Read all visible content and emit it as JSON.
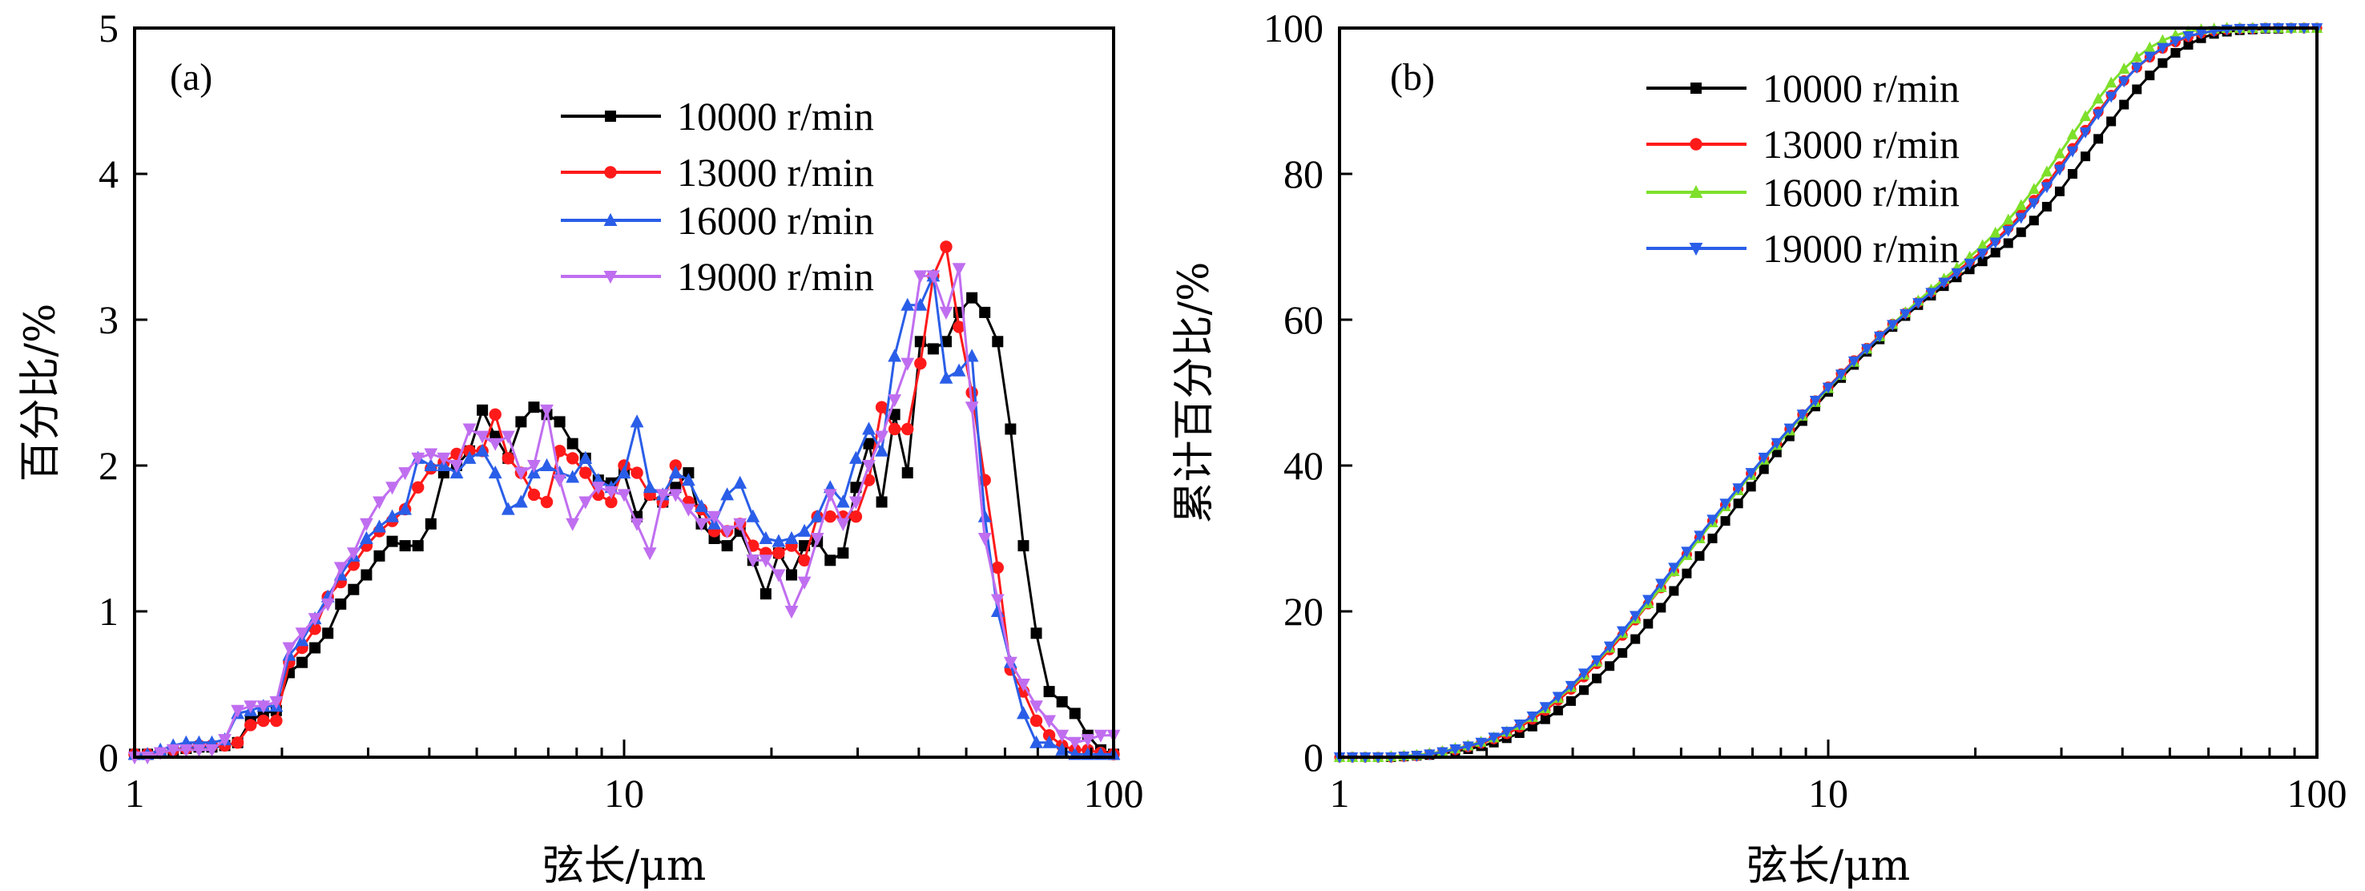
{
  "chart_data": [
    {
      "type": "line",
      "panel_label": "(a)",
      "title": "",
      "xlabel": "弦长/μm",
      "ylabel": "百分比/%",
      "xscale": "log",
      "xlim": [
        1,
        100
      ],
      "ylim": [
        0,
        5
      ],
      "xticks": [
        "1",
        "10",
        "100"
      ],
      "yticks": [
        "0",
        "1",
        "2",
        "3",
        "4",
        "5"
      ],
      "grid": false,
      "legend_position": "top-right",
      "points_per_decade": 38,
      "series": [
        {
          "name": "10000 r/min",
          "color": "#000000",
          "marker": "square",
          "values": [
            0.02,
            0.02,
            0.03,
            0.05,
            0.06,
            0.07,
            0.07,
            0.08,
            0.1,
            0.25,
            0.3,
            0.32,
            0.58,
            0.65,
            0.75,
            0.85,
            1.05,
            1.15,
            1.25,
            1.38,
            1.48,
            1.45,
            1.45,
            1.6,
            1.95,
            2.0,
            2.1,
            2.38,
            2.2,
            2.05,
            2.3,
            2.4,
            2.35,
            2.3,
            2.15,
            2.05,
            1.9,
            1.88,
            1.95,
            1.65,
            1.8,
            1.75,
            1.85,
            1.95,
            1.6,
            1.5,
            1.45,
            1.55,
            1.35,
            1.12,
            1.4,
            1.25,
            1.45,
            1.48,
            1.35,
            1.4,
            1.85,
            2.15,
            1.75,
            2.35,
            1.95,
            2.85,
            2.8,
            2.85,
            3.05,
            3.15,
            3.05,
            2.85,
            2.25,
            1.45,
            0.85,
            0.45,
            0.38,
            0.3,
            0.15,
            0.05,
            0.02
          ]
        },
        {
          "name": "13000 r/min",
          "color": "#ff1a1a",
          "marker": "circle",
          "values": [
            0.02,
            0.02,
            0.03,
            0.05,
            0.06,
            0.08,
            0.08,
            0.08,
            0.1,
            0.22,
            0.25,
            0.25,
            0.65,
            0.75,
            0.88,
            1.1,
            1.2,
            1.32,
            1.45,
            1.55,
            1.62,
            1.7,
            1.85,
            1.98,
            2.02,
            2.08,
            2.1,
            2.1,
            2.35,
            2.05,
            1.95,
            1.8,
            1.75,
            2.1,
            2.05,
            1.95,
            1.8,
            1.75,
            2.0,
            1.95,
            1.8,
            1.75,
            2.0,
            1.75,
            1.7,
            1.55,
            1.55,
            1.6,
            1.45,
            1.4,
            1.4,
            1.45,
            1.35,
            1.65,
            1.65,
            1.65,
            1.65,
            1.9,
            2.4,
            2.25,
            2.25,
            2.7,
            3.3,
            3.5,
            2.95,
            2.5,
            1.9,
            1.3,
            0.6,
            0.45,
            0.25,
            0.15,
            0.08,
            0.05,
            0.05,
            0.03,
            0.02
          ]
        },
        {
          "name": "16000 r/min",
          "color": "#2a5ee8",
          "marker": "triangle-up",
          "values": [
            0.02,
            0.02,
            0.05,
            0.08,
            0.1,
            0.1,
            0.1,
            0.12,
            0.3,
            0.32,
            0.35,
            0.35,
            0.7,
            0.8,
            0.95,
            1.1,
            1.25,
            1.38,
            1.5,
            1.58,
            1.65,
            1.7,
            2.05,
            2.0,
            2.0,
            1.95,
            2.05,
            2.1,
            1.95,
            1.7,
            1.75,
            1.95,
            2.0,
            1.95,
            1.92,
            2.05,
            1.9,
            1.85,
            1.95,
            2.3,
            1.85,
            1.8,
            1.95,
            1.9,
            1.72,
            1.6,
            1.8,
            1.88,
            1.65,
            1.5,
            1.48,
            1.5,
            1.55,
            1.65,
            1.85,
            1.75,
            2.05,
            2.25,
            2.1,
            2.75,
            3.1,
            3.1,
            3.3,
            2.6,
            2.65,
            2.75,
            1.65,
            1.0,
            0.65,
            0.3,
            0.1,
            0.1,
            0.05,
            0.02,
            0.02,
            0.02,
            0.02
          ]
        },
        {
          "name": "19000 r/min",
          "color": "#c06ef0",
          "marker": "triangle-down",
          "values": [
            0.0,
            0.0,
            0.03,
            0.05,
            0.05,
            0.05,
            0.05,
            0.12,
            0.32,
            0.35,
            0.35,
            0.38,
            0.75,
            0.85,
            0.95,
            1.05,
            1.3,
            1.4,
            1.6,
            1.75,
            1.85,
            1.95,
            2.05,
            2.08,
            2.05,
            2.0,
            2.25,
            2.2,
            2.15,
            2.2,
            1.95,
            2.0,
            2.38,
            1.9,
            1.6,
            1.75,
            1.85,
            1.82,
            1.8,
            1.6,
            1.4,
            1.8,
            1.8,
            1.7,
            1.6,
            1.65,
            1.55,
            1.6,
            1.35,
            1.35,
            1.25,
            1.0,
            1.2,
            1.5,
            1.8,
            1.6,
            1.75,
            2.0,
            2.2,
            2.45,
            2.7,
            3.3,
            3.3,
            3.05,
            3.35,
            2.4,
            1.5,
            1.08,
            0.65,
            0.5,
            0.35,
            0.25,
            0.15,
            0.1,
            0.12,
            0.15,
            0.15
          ]
        }
      ]
    },
    {
      "type": "line",
      "panel_label": "(b)",
      "title": "",
      "xlabel": "弦长/μm",
      "ylabel": "累计百分比/%",
      "xscale": "log",
      "xlim": [
        1,
        100
      ],
      "ylim": [
        0,
        100
      ],
      "xticks": [
        "1",
        "10",
        "100"
      ],
      "yticks": [
        "0",
        "20",
        "40",
        "60",
        "80",
        "100"
      ],
      "grid": false,
      "legend_position": "top-left",
      "points_per_decade": 38,
      "series": [
        {
          "name": "10000 r/min",
          "color": "#000000",
          "marker": "square",
          "values": [
            0,
            0,
            0,
            0,
            0,
            0.1,
            0.2,
            0.3,
            0.5,
            0.8,
            1.1,
            1.5,
            2.0,
            2.6,
            3.3,
            4.2,
            5.2,
            6.4,
            7.7,
            9.2,
            10.8,
            12.5,
            14.3,
            16.2,
            18.3,
            20.5,
            22.8,
            25.2,
            27.6,
            30.0,
            32.4,
            34.8,
            37.1,
            39.5,
            41.8,
            44.0,
            46.1,
            48.1,
            50.1,
            52.0,
            53.8,
            55.6,
            57.3,
            59.0,
            60.5,
            62.0,
            63.3,
            64.6,
            65.8,
            66.9,
            68.0,
            69.2,
            70.5,
            72.0,
            73.6,
            75.5,
            77.6,
            80.0,
            82.4,
            84.8,
            87.2,
            89.5,
            91.6,
            93.5,
            95.2,
            96.6,
            97.7,
            98.6,
            99.2,
            99.5,
            99.7,
            99.8,
            99.9,
            99.9,
            100,
            100,
            100
          ]
        },
        {
          "name": "13000 r/min",
          "color": "#ff1a1a",
          "marker": "circle",
          "values": [
            0,
            0,
            0,
            0,
            0,
            0.1,
            0.2,
            0.4,
            0.7,
            1.0,
            1.4,
            1.9,
            2.5,
            3.2,
            4.1,
            5.2,
            6.4,
            7.8,
            9.3,
            11.0,
            12.8,
            14.7,
            16.7,
            18.8,
            21.0,
            23.2,
            25.5,
            27.8,
            30.1,
            32.4,
            34.6,
            36.8,
            38.9,
            41.0,
            43.0,
            45.0,
            47.0,
            48.9,
            50.8,
            52.6,
            54.4,
            56.1,
            57.8,
            59.4,
            60.9,
            62.4,
            63.8,
            65.2,
            66.6,
            68.0,
            69.4,
            70.9,
            72.6,
            74.4,
            76.4,
            78.6,
            81.0,
            83.5,
            86.0,
            88.5,
            90.8,
            92.8,
            94.6,
            96.0,
            97.2,
            98.1,
            98.8,
            99.3,
            99.6,
            99.8,
            99.9,
            99.9,
            100,
            100,
            100,
            100,
            100
          ]
        },
        {
          "name": "16000 r/min",
          "color": "#7ee02a",
          "marker": "triangle-up",
          "values": [
            0,
            0,
            0,
            0,
            0.1,
            0.2,
            0.3,
            0.5,
            0.8,
            1.2,
            1.6,
            2.1,
            2.7,
            3.5,
            4.4,
            5.5,
            6.7,
            8.1,
            9.6,
            11.3,
            13.1,
            15.0,
            17.0,
            19.0,
            21.1,
            23.3,
            25.5,
            27.7,
            30.0,
            32.2,
            34.4,
            36.6,
            38.7,
            40.8,
            42.8,
            44.8,
            46.8,
            48.7,
            50.6,
            52.4,
            54.2,
            56.0,
            57.7,
            59.4,
            61.0,
            62.6,
            64.1,
            65.6,
            67.1,
            68.6,
            70.2,
            71.9,
            73.7,
            75.7,
            77.9,
            80.3,
            82.8,
            85.4,
            87.9,
            90.3,
            92.5,
            94.4,
            96.0,
            97.3,
            98.3,
            99.0,
            99.5,
            99.8,
            99.9,
            100,
            100,
            100,
            100,
            100,
            100,
            100,
            100
          ]
        },
        {
          "name": "19000 r/min",
          "color": "#2a5ee8",
          "marker": "triangle-down",
          "values": [
            0,
            0,
            0,
            0,
            0,
            0.1,
            0.2,
            0.4,
            0.7,
            1.1,
            1.5,
            2.0,
            2.7,
            3.5,
            4.5,
            5.6,
            6.9,
            8.3,
            9.8,
            11.5,
            13.3,
            15.2,
            17.3,
            19.4,
            21.6,
            23.8,
            26.0,
            28.2,
            30.4,
            32.6,
            34.8,
            36.9,
            39.0,
            41.1,
            43.1,
            45.1,
            47.0,
            48.9,
            50.7,
            52.5,
            54.3,
            56.0,
            57.7,
            59.3,
            60.8,
            62.3,
            63.7,
            65.1,
            66.4,
            67.7,
            69.1,
            70.6,
            72.2,
            74.0,
            76.0,
            78.2,
            80.6,
            83.1,
            85.7,
            88.2,
            90.6,
            92.7,
            94.6,
            96.1,
            97.3,
            98.2,
            98.9,
            99.3,
            99.6,
            99.8,
            99.9,
            99.9,
            100,
            100,
            100,
            100,
            100
          ]
        }
      ]
    }
  ]
}
